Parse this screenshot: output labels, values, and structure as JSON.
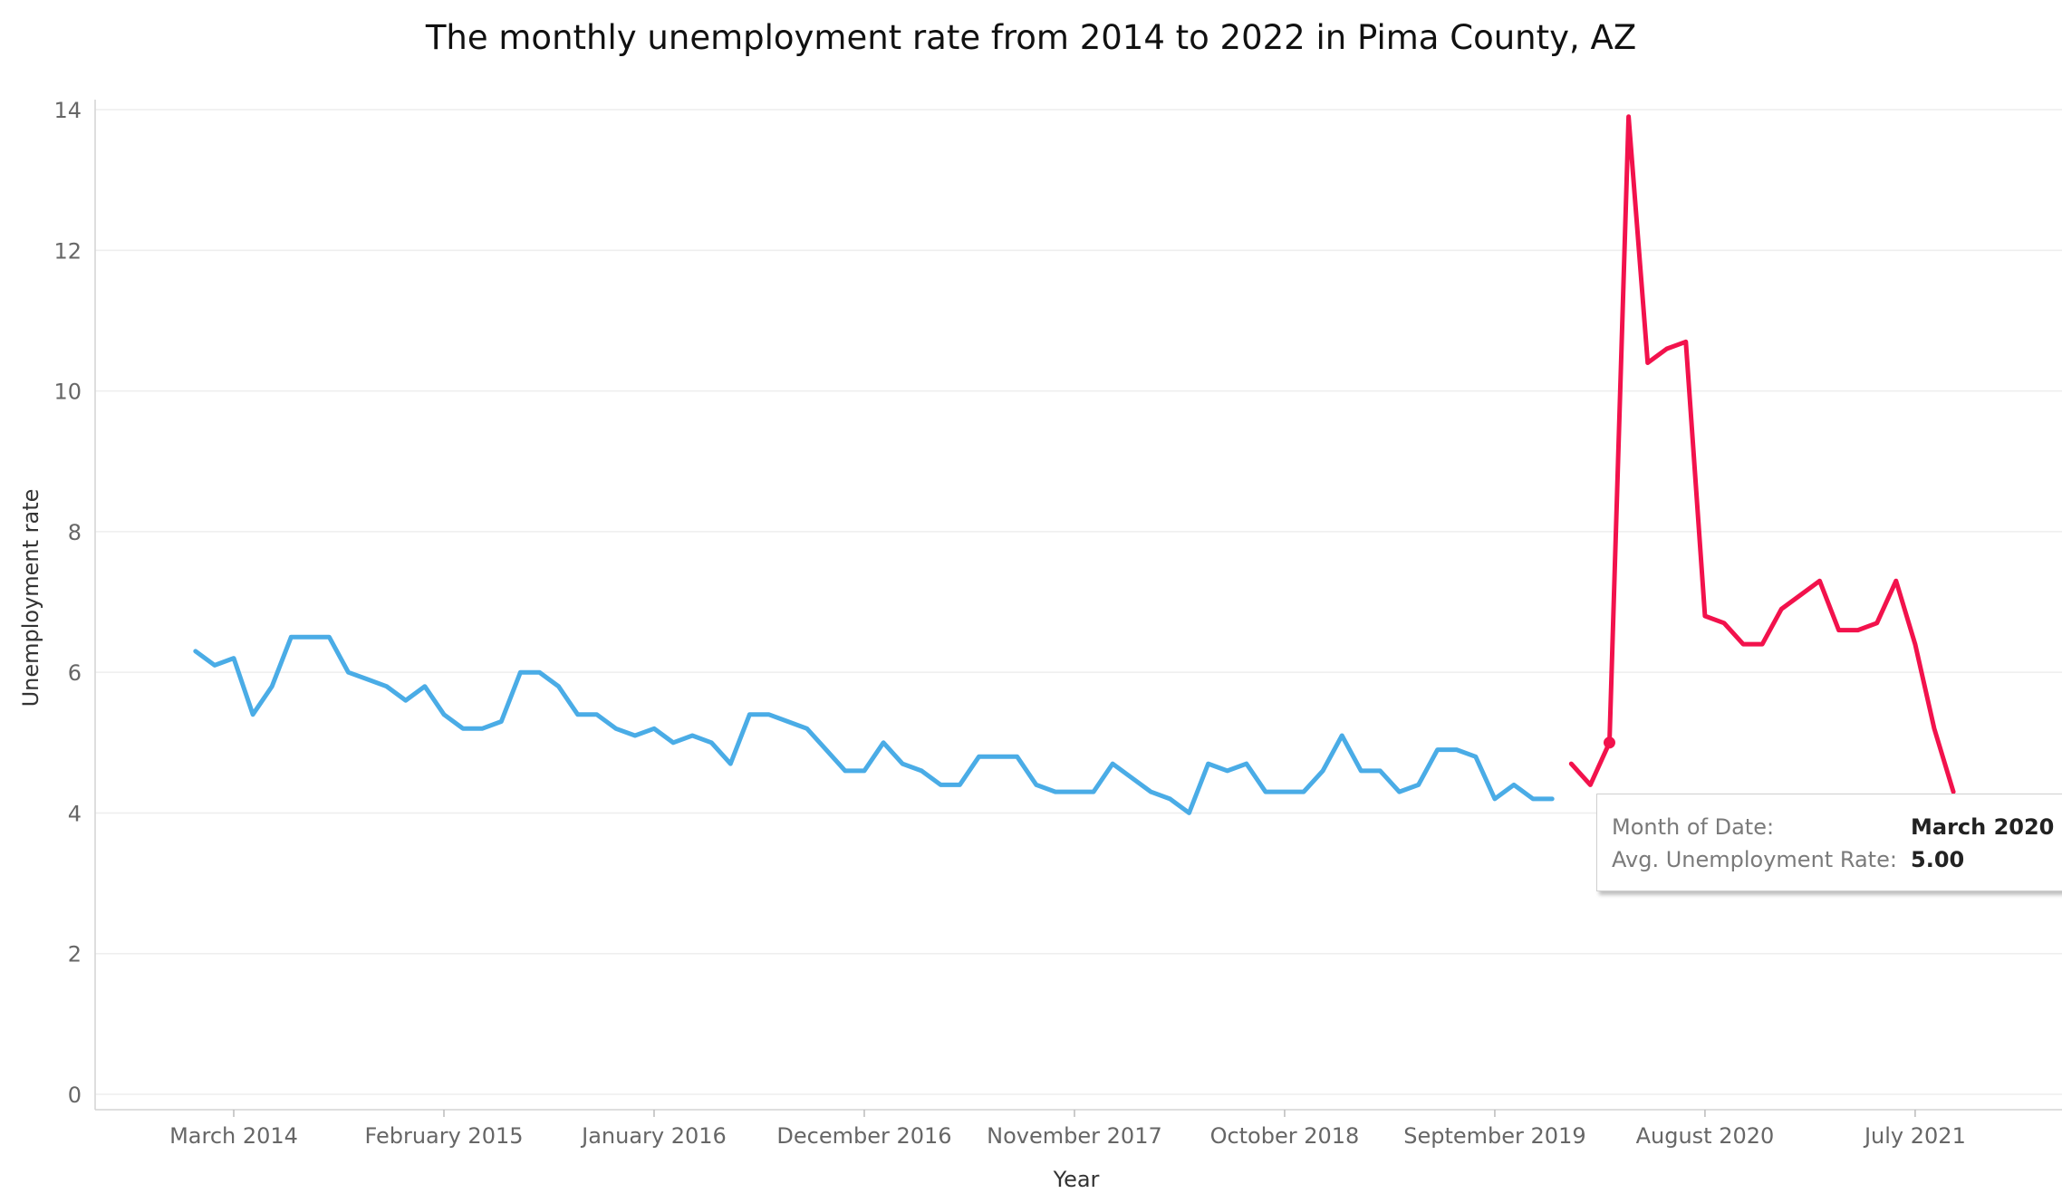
{
  "chart_data": {
    "type": "line",
    "title": "The monthly unemployment rate from 2014 to 2022 in Pima County, AZ",
    "xlabel": "Year",
    "ylabel": "Unemployment rate",
    "ylim": [
      0,
      14.5
    ],
    "y_ticks": [
      0,
      2,
      4,
      6,
      8,
      10,
      12,
      14
    ],
    "x_ticks": [
      {
        "label": "March 2014",
        "date": "2014-03"
      },
      {
        "label": "February 2015",
        "date": "2015-02"
      },
      {
        "label": "January 2016",
        "date": "2016-01"
      },
      {
        "label": "December 2016",
        "date": "2016-12"
      },
      {
        "label": "November 2017",
        "date": "2017-11"
      },
      {
        "label": "October 2018",
        "date": "2018-10"
      },
      {
        "label": "September 2019",
        "date": "2019-09"
      },
      {
        "label": "August 2020",
        "date": "2020-08"
      },
      {
        "label": "July 2021",
        "date": "2021-07"
      }
    ],
    "grid": true,
    "colors": {
      "normal": "#4aace6",
      "highlight": "#f2124c"
    },
    "series": [
      {
        "start": "2014-01",
        "values": [
          6.3,
          6.1,
          6.2,
          5.4,
          5.8,
          6.5,
          6.5,
          6.5,
          6.0,
          5.9,
          5.8,
          5.6,
          5.8,
          5.4,
          5.2,
          5.2,
          5.3,
          6.0,
          6.0,
          5.8,
          5.4,
          5.4,
          5.2,
          5.1,
          5.2,
          5.0,
          5.1,
          5.0,
          4.7,
          5.4,
          5.4,
          5.3,
          5.2,
          4.9,
          4.6,
          4.6,
          5.0,
          4.7,
          4.6,
          4.4,
          4.4,
          4.8,
          4.8,
          4.8,
          4.4,
          4.3,
          4.3,
          4.3,
          4.7,
          4.5,
          4.3,
          4.2,
          4.0,
          4.7,
          4.6,
          4.7,
          4.3,
          4.3,
          4.3,
          4.6,
          5.1,
          4.6,
          4.6,
          4.3,
          4.4,
          4.9,
          4.9,
          4.8,
          4.2,
          4.4,
          4.2,
          4.2
        ]
      },
      {
        "start": "2020-01",
        "values": [
          4.7,
          4.4,
          5.0,
          13.9,
          10.4,
          10.6,
          10.7,
          6.8,
          6.7,
          6.4,
          6.4,
          6.9,
          7.1,
          7.3,
          6.6,
          6.6,
          6.7,
          7.3,
          6.4,
          5.2,
          4.3
        ]
      }
    ],
    "highlight_point": {
      "date": "2020-03",
      "value": 5.0
    }
  },
  "tooltip": {
    "month_label": "Month of Date:",
    "month_value": "March 2020",
    "rate_label": "Avg. Unemployment Rate:",
    "rate_value": "5.00"
  }
}
